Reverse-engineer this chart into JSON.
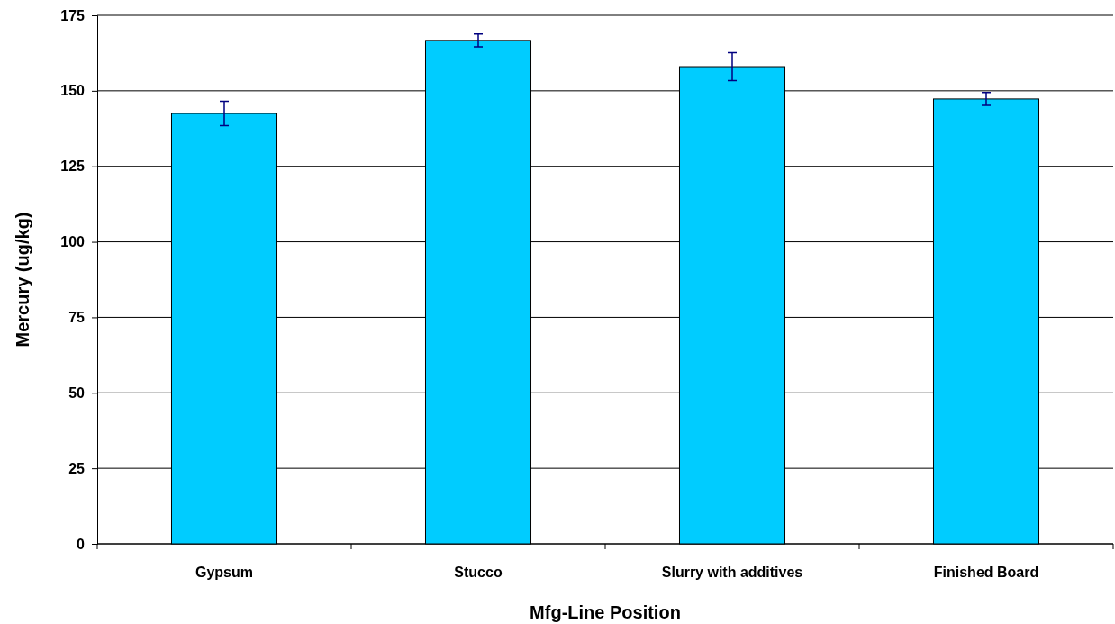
{
  "chart_data": {
    "type": "bar",
    "xlabel": "Mfg-Line Position",
    "ylabel": "Mercury (ug/kg)",
    "categories": [
      "Gypsum",
      "Stucco",
      "Slurry with additives",
      "Finished Board"
    ],
    "values": [
      142.5,
      166.7,
      158.0,
      147.3
    ],
    "errors": [
      4.0,
      2.1,
      4.6,
      2.1
    ],
    "color": "#00ccff",
    "ylim": [
      0,
      175
    ],
    "yticks": [
      0,
      25,
      50,
      75,
      100,
      125,
      150,
      175
    ],
    "grid": "y"
  }
}
